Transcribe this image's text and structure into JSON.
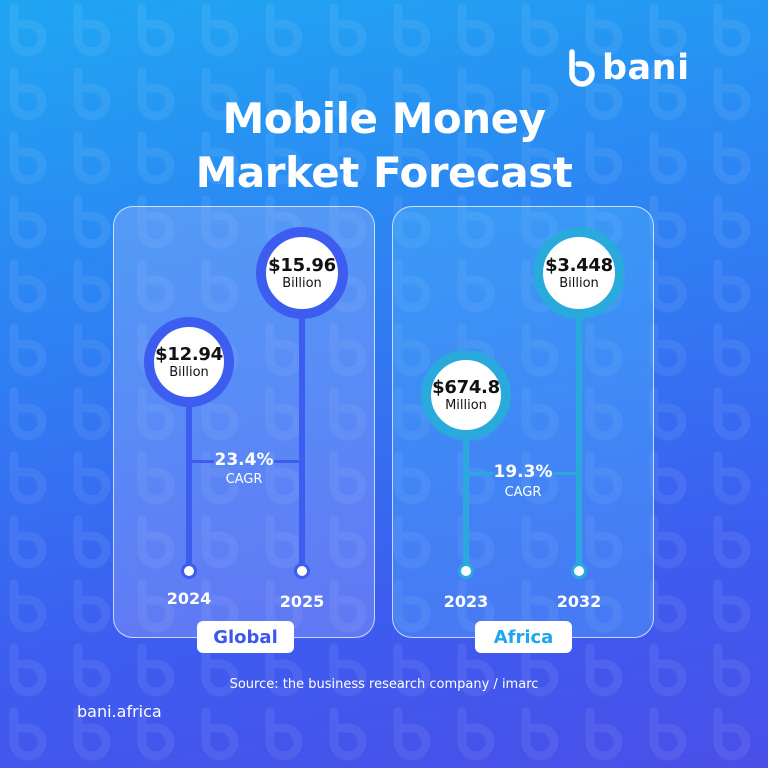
{
  "brand": {
    "name": "bani"
  },
  "title": {
    "line1": "Mobile Money",
    "line2": "Market Forecast"
  },
  "colors": {
    "global_accent": "#3d5cf0",
    "africa_accent": "#2aa9dc",
    "tag_global_text": "#3b57f0",
    "tag_africa_text": "#1fa6f2"
  },
  "global": {
    "start": {
      "amount": "$12.94",
      "unit": "Billion",
      "year": "2024"
    },
    "end": {
      "amount": "$15.96",
      "unit": "Billion",
      "year": "2025"
    },
    "cagr": {
      "value": "23.4%",
      "label": "CAGR"
    },
    "tag": "Global"
  },
  "africa": {
    "start": {
      "amount": "$674.8",
      "unit": "Million",
      "year": "2023"
    },
    "end": {
      "amount": "$3.448",
      "unit": "Billion",
      "year": "2032"
    },
    "cagr": {
      "value": "19.3%",
      "label": "CAGR"
    },
    "tag": "Africa"
  },
  "source": "Source: the business research company / imarc",
  "website": "bani.africa"
}
